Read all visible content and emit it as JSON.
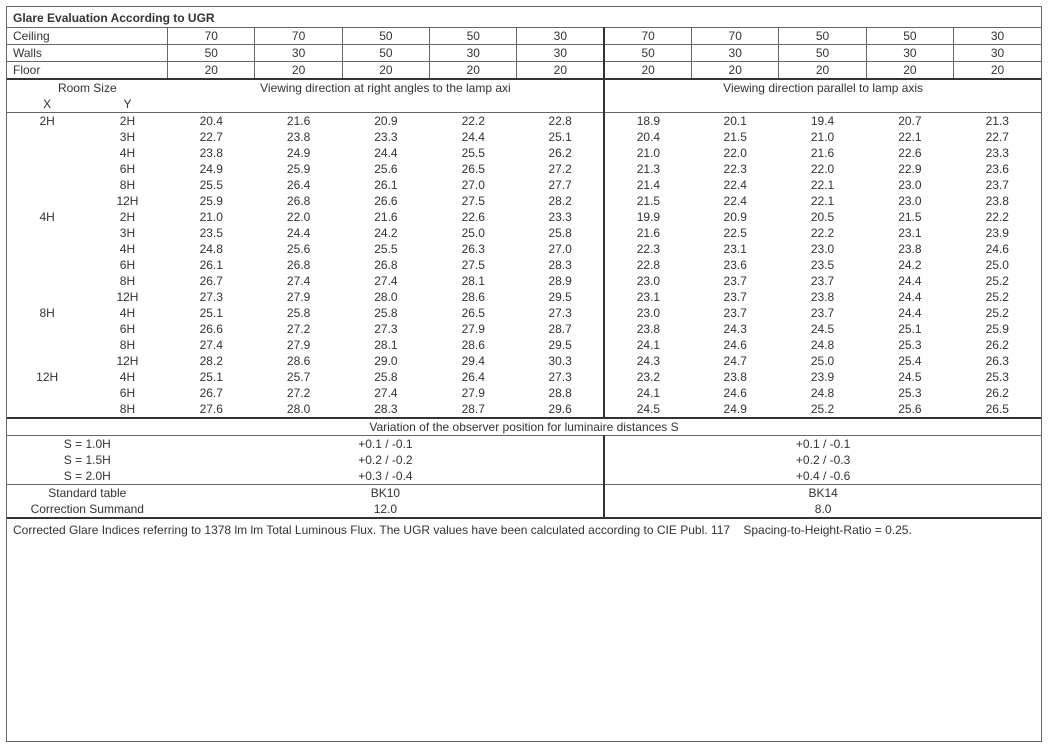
{
  "title": "Glare Evaluation According to UGR",
  "reflectances": {
    "labels": {
      "ceiling": "Ceiling",
      "walls": "Walls",
      "floor": "Floor"
    },
    "ceiling": [
      "70",
      "70",
      "50",
      "50",
      "30",
      "70",
      "70",
      "50",
      "50",
      "30"
    ],
    "walls": [
      "50",
      "30",
      "50",
      "30",
      "30",
      "50",
      "30",
      "50",
      "30",
      "30"
    ],
    "floor": [
      "20",
      "20",
      "20",
      "20",
      "20",
      "20",
      "20",
      "20",
      "20",
      "20"
    ]
  },
  "room_size_header": "Room Size",
  "x_label": "X",
  "y_label": "Y",
  "direction_headers": {
    "left": "Viewing direction at right angles to the lamp axi",
    "right": "Viewing direction parallel to lamp axis"
  },
  "blocks": [
    {
      "x": "2H",
      "rows": [
        {
          "y": "2H",
          "v": [
            "20.4",
            "21.6",
            "20.9",
            "22.2",
            "22.8",
            "18.9",
            "20.1",
            "19.4",
            "20.7",
            "21.3"
          ]
        },
        {
          "y": "3H",
          "v": [
            "22.7",
            "23.8",
            "23.3",
            "24.4",
            "25.1",
            "20.4",
            "21.5",
            "21.0",
            "22.1",
            "22.7"
          ]
        },
        {
          "y": "4H",
          "v": [
            "23.8",
            "24.9",
            "24.4",
            "25.5",
            "26.2",
            "21.0",
            "22.0",
            "21.6",
            "22.6",
            "23.3"
          ]
        },
        {
          "y": "6H",
          "v": [
            "24.9",
            "25.9",
            "25.6",
            "26.5",
            "27.2",
            "21.3",
            "22.3",
            "22.0",
            "22.9",
            "23.6"
          ]
        },
        {
          "y": "8H",
          "v": [
            "25.5",
            "26.4",
            "26.1",
            "27.0",
            "27.7",
            "21.4",
            "22.4",
            "22.1",
            "23.0",
            "23.7"
          ]
        },
        {
          "y": "12H",
          "v": [
            "25.9",
            "26.8",
            "26.6",
            "27.5",
            "28.2",
            "21.5",
            "22.4",
            "22.1",
            "23.0",
            "23.8"
          ]
        }
      ]
    },
    {
      "x": "4H",
      "rows": [
        {
          "y": "2H",
          "v": [
            "21.0",
            "22.0",
            "21.6",
            "22.6",
            "23.3",
            "19.9",
            "20.9",
            "20.5",
            "21.5",
            "22.2"
          ]
        },
        {
          "y": "3H",
          "v": [
            "23.5",
            "24.4",
            "24.2",
            "25.0",
            "25.8",
            "21.6",
            "22.5",
            "22.2",
            "23.1",
            "23.9"
          ]
        },
        {
          "y": "4H",
          "v": [
            "24.8",
            "25.6",
            "25.5",
            "26.3",
            "27.0",
            "22.3",
            "23.1",
            "23.0",
            "23.8",
            "24.6"
          ]
        },
        {
          "y": "6H",
          "v": [
            "26.1",
            "26.8",
            "26.8",
            "27.5",
            "28.3",
            "22.8",
            "23.6",
            "23.5",
            "24.2",
            "25.0"
          ]
        },
        {
          "y": "8H",
          "v": [
            "26.7",
            "27.4",
            "27.4",
            "28.1",
            "28.9",
            "23.0",
            "23.7",
            "23.7",
            "24.4",
            "25.2"
          ]
        },
        {
          "y": "12H",
          "v": [
            "27.3",
            "27.9",
            "28.0",
            "28.6",
            "29.5",
            "23.1",
            "23.7",
            "23.8",
            "24.4",
            "25.2"
          ]
        }
      ]
    },
    {
      "x": "8H",
      "rows": [
        {
          "y": "4H",
          "v": [
            "25.1",
            "25.8",
            "25.8",
            "26.5",
            "27.3",
            "23.0",
            "23.7",
            "23.7",
            "24.4",
            "25.2"
          ]
        },
        {
          "y": "6H",
          "v": [
            "26.6",
            "27.2",
            "27.3",
            "27.9",
            "28.7",
            "23.8",
            "24.3",
            "24.5",
            "25.1",
            "25.9"
          ]
        },
        {
          "y": "8H",
          "v": [
            "27.4",
            "27.9",
            "28.1",
            "28.6",
            "29.5",
            "24.1",
            "24.6",
            "24.8",
            "25.3",
            "26.2"
          ]
        },
        {
          "y": "12H",
          "v": [
            "28.2",
            "28.6",
            "29.0",
            "29.4",
            "30.3",
            "24.3",
            "24.7",
            "25.0",
            "25.4",
            "26.3"
          ]
        }
      ]
    },
    {
      "x": "12H",
      "rows": [
        {
          "y": "4H",
          "v": [
            "25.1",
            "25.7",
            "25.8",
            "26.4",
            "27.3",
            "23.2",
            "23.8",
            "23.9",
            "24.5",
            "25.3"
          ]
        },
        {
          "y": "6H",
          "v": [
            "26.7",
            "27.2",
            "27.4",
            "27.9",
            "28.8",
            "24.1",
            "24.6",
            "24.8",
            "25.3",
            "26.2"
          ]
        },
        {
          "y": "8H",
          "v": [
            "27.6",
            "28.0",
            "28.3",
            "28.7",
            "29.6",
            "24.5",
            "24.9",
            "25.2",
            "25.6",
            "26.5"
          ]
        }
      ]
    }
  ],
  "variation": {
    "header": "Variation of the observer position for luminaire distances S",
    "rows": [
      {
        "label": "S = 1.0H",
        "left": "+0.1 / -0.1",
        "right": "+0.1 / -0.1"
      },
      {
        "label": "S = 1.5H",
        "left": "+0.2 / -0.2",
        "right": "+0.2 / -0.3"
      },
      {
        "label": "S = 2.0H",
        "left": "+0.3 / -0.4",
        "right": "+0.4 / -0.6"
      }
    ]
  },
  "standard": {
    "label1": "Standard table",
    "label2": "Correction Summand",
    "left_table": "BK10",
    "right_table": "BK14",
    "left_corr": "12.0",
    "right_corr": "8.0"
  },
  "footnote_left": "Corrected Glare Indices referring to 1378 lm lm Total Luminous Flux. The UGR values have been calculated according to CIE Publ. 117",
  "footnote_right": "Spacing-to-Height-Ratio = 0.25.",
  "colors": {
    "background": "#ffffff",
    "text": "#333333",
    "border": "#666666",
    "border_heavy": "#333333"
  },
  "fontsize_pt": 9
}
